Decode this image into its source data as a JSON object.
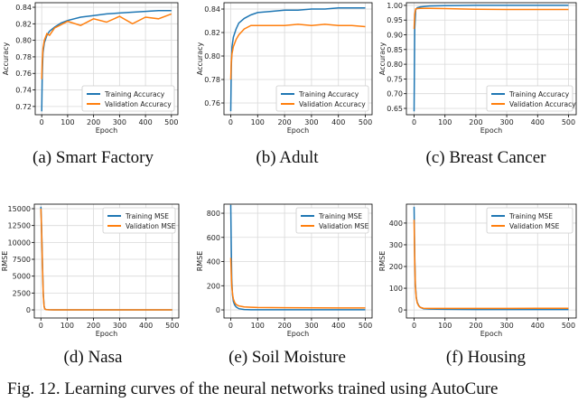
{
  "figure_caption": "Fig. 12.  Learning curves of the neural networks trained using AutoCure",
  "colors": {
    "train": "#1f77b4",
    "val": "#ff7f0e",
    "grid": "#d9d9d9"
  },
  "chart_data": [
    {
      "type": "line",
      "caption": "(a) Smart Factory",
      "xlabel": "Epoch",
      "ylabel": "Accuracy",
      "xlim": [
        -25,
        525
      ],
      "ylim": [
        0.71,
        0.8455
      ],
      "xticks": [
        0,
        100,
        200,
        300,
        400,
        500
      ],
      "yticks": [
        0.72,
        0.74,
        0.76,
        0.78,
        0.8,
        0.82,
        0.84
      ],
      "ytick_labels": [
        "0.72",
        "0.74",
        "0.76",
        "0.78",
        "0.80",
        "0.82",
        "0.84"
      ],
      "legend": "bottom-right",
      "x": [
        0,
        2,
        5,
        10,
        20,
        30,
        50,
        75,
        100,
        150,
        200,
        250,
        300,
        350,
        400,
        450,
        500
      ],
      "series": [
        {
          "name": "Training Accuracy",
          "values": [
            0.714,
            0.76,
            0.785,
            0.797,
            0.806,
            0.811,
            0.816,
            0.821,
            0.824,
            0.828,
            0.83,
            0.832,
            0.833,
            0.834,
            0.835,
            0.836,
            0.836
          ]
        },
        {
          "name": "Validation Accuracy",
          "values": [
            0.753,
            0.775,
            0.79,
            0.8,
            0.808,
            0.806,
            0.815,
            0.819,
            0.823,
            0.818,
            0.826,
            0.822,
            0.829,
            0.82,
            0.828,
            0.826,
            0.832
          ]
        }
      ]
    },
    {
      "type": "line",
      "caption": "(b) Adult",
      "xlabel": "Epoch",
      "ylabel": "Accuracy",
      "xlim": [
        -25,
        525
      ],
      "ylim": [
        0.75,
        0.8454
      ],
      "xticks": [
        0,
        100,
        200,
        300,
        400,
        500
      ],
      "yticks": [
        0.76,
        0.78,
        0.8,
        0.82,
        0.84
      ],
      "ytick_labels": [
        "0.76",
        "0.78",
        "0.80",
        "0.82",
        "0.84"
      ],
      "legend": "bottom-right",
      "x": [
        0,
        2,
        5,
        10,
        20,
        30,
        50,
        75,
        100,
        150,
        200,
        250,
        300,
        350,
        400,
        450,
        500
      ],
      "series": [
        {
          "name": "Training Accuracy",
          "values": [
            0.753,
            0.79,
            0.808,
            0.816,
            0.823,
            0.828,
            0.832,
            0.835,
            0.837,
            0.838,
            0.839,
            0.839,
            0.84,
            0.84,
            0.841,
            0.841,
            0.841
          ]
        },
        {
          "name": "Validation Accuracy",
          "values": [
            0.78,
            0.795,
            0.802,
            0.808,
            0.814,
            0.818,
            0.823,
            0.826,
            0.826,
            0.826,
            0.826,
            0.827,
            0.826,
            0.827,
            0.826,
            0.826,
            0.825
          ]
        }
      ]
    },
    {
      "type": "line",
      "caption": "(c) Breast Cancer",
      "xlabel": "Epoch",
      "ylabel": "Accuracy",
      "xlim": [
        -25,
        525
      ],
      "ylim": [
        0.6285,
        1.009
      ],
      "xticks": [
        0,
        100,
        200,
        300,
        400,
        500
      ],
      "yticks": [
        0.65,
        0.7,
        0.75,
        0.8,
        0.85,
        0.9,
        0.95,
        1.0
      ],
      "ytick_labels": [
        "0.65",
        "0.70",
        "0.75",
        "0.80",
        "0.85",
        "0.90",
        "0.95",
        "1.00"
      ],
      "legend": "bottom-right",
      "x": [
        0,
        2,
        5,
        10,
        20,
        50,
        100,
        200,
        300,
        400,
        500
      ],
      "series": [
        {
          "name": "Training Accuracy",
          "values": [
            0.64,
            0.92,
            0.985,
            0.992,
            0.995,
            0.998,
            0.999,
            1.0,
            1.0,
            1.0,
            1.0
          ]
        },
        {
          "name": "Validation Accuracy",
          "values": [
            0.92,
            0.97,
            0.988,
            0.989,
            0.99,
            0.99,
            0.989,
            0.987,
            0.986,
            0.986,
            0.986
          ]
        }
      ]
    },
    {
      "type": "line",
      "caption": "(d) Nasa",
      "xlabel": "Epoch",
      "ylabel": "RMSE",
      "xlim": [
        -25,
        525
      ],
      "ylim": [
        -1200,
        15670
      ],
      "xticks": [
        0,
        100,
        200,
        300,
        400,
        500
      ],
      "yticks": [
        0,
        2500,
        5000,
        7500,
        10000,
        12500,
        15000
      ],
      "ytick_labels": [
        "0",
        "2500",
        "5000",
        "7500",
        "10000",
        "12500",
        "15000"
      ],
      "legend": "top-right",
      "x": [
        0,
        3,
        6,
        9,
        12,
        15,
        20,
        30,
        50,
        100,
        200,
        300,
        400,
        500
      ],
      "series": [
        {
          "name": "Training MSE",
          "values": [
            15300,
            12000,
            7000,
            2500,
            600,
            150,
            50,
            20,
            10,
            5,
            5,
            5,
            5,
            5
          ]
        },
        {
          "name": "Validation MSE",
          "values": [
            15000,
            11500,
            6500,
            2200,
            500,
            120,
            40,
            20,
            10,
            5,
            5,
            5,
            5,
            5
          ]
        }
      ]
    },
    {
      "type": "line",
      "caption": "(e) Soil Moisture",
      "xlabel": "Epoch",
      "ylabel": "RMSE",
      "xlim": [
        -25,
        525
      ],
      "ylim": [
        -67,
        875
      ],
      "xticks": [
        0,
        100,
        200,
        300,
        400,
        500
      ],
      "yticks": [
        0,
        200,
        400,
        600,
        800
      ],
      "ytick_labels": [
        "0",
        "200",
        "400",
        "600",
        "800"
      ],
      "legend": "top-right",
      "x": [
        0,
        2,
        4,
        7,
        10,
        15,
        20,
        30,
        50,
        75,
        100,
        200,
        300,
        400,
        500
      ],
      "series": [
        {
          "name": "Training MSE",
          "values": [
            870,
            500,
            250,
            120,
            70,
            40,
            25,
            10,
            3,
            1,
            1,
            1,
            1,
            1,
            1
          ]
        },
        {
          "name": "Validation MSE",
          "values": [
            430,
            300,
            200,
            130,
            90,
            60,
            45,
            33,
            25,
            22,
            20,
            18,
            17,
            16,
            16
          ]
        }
      ]
    },
    {
      "type": "line",
      "caption": "(f) Housing",
      "xlabel": "Epoch",
      "ylabel": "RMSE",
      "xlim": [
        -25,
        525
      ],
      "ylim": [
        -37,
        487
      ],
      "xticks": [
        0,
        100,
        200,
        300,
        400,
        500
      ],
      "yticks": [
        0,
        100,
        200,
        300,
        400
      ],
      "ytick_labels": [
        "0",
        "100",
        "200",
        "300",
        "400"
      ],
      "legend": "top-right",
      "x": [
        0,
        2,
        4,
        7,
        10,
        15,
        20,
        30,
        50,
        100,
        200,
        300,
        400,
        500
      ],
      "series": [
        {
          "name": "Training MSE",
          "values": [
            475,
            250,
            120,
            60,
            35,
            20,
            12,
            6,
            4,
            3,
            2,
            2,
            2,
            2
          ]
        },
        {
          "name": "Validation MSE",
          "values": [
            415,
            230,
            110,
            55,
            32,
            18,
            12,
            8,
            7,
            7,
            7,
            7,
            8,
            8
          ]
        }
      ]
    }
  ]
}
